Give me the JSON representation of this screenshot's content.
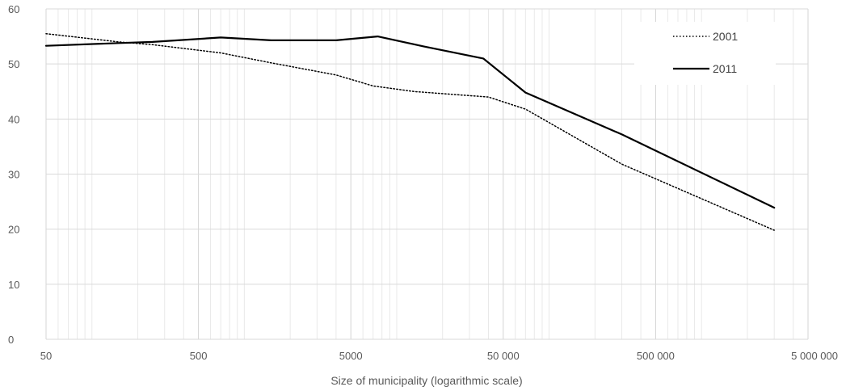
{
  "chart_data": {
    "type": "line",
    "title": "",
    "xlabel": "Size of municipality (logarithmic scale)",
    "ylabel": "",
    "x_scale": "log",
    "xlim": [
      50,
      5000000
    ],
    "ylim": [
      0,
      60
    ],
    "x_ticks": [
      50,
      500,
      5000,
      50000,
      500000,
      5000000
    ],
    "x_tick_labels": [
      "50",
      "500",
      "5000",
      "50 000",
      "500 000",
      "5 000 000"
    ],
    "y_ticks": [
      0,
      10,
      20,
      30,
      40,
      50,
      60
    ],
    "y_tick_labels": [
      "0",
      "10",
      "20",
      "30",
      "40",
      "50",
      "60"
    ],
    "grid": true,
    "legend_position": "top-right",
    "series": [
      {
        "name": "2001",
        "line_style": "dotted",
        "color": "#000000",
        "x": [
          50,
          150,
          250,
          700,
          1500,
          4000,
          7000,
          13000,
          40000,
          70000,
          300000,
          3000000
        ],
        "y": [
          55.5,
          54.0,
          53.5,
          52.0,
          50.2,
          48.0,
          46.0,
          45.0,
          44.0,
          41.8,
          31.8,
          19.8
        ]
      },
      {
        "name": "2011",
        "line_style": "solid",
        "color": "#000000",
        "x": [
          50,
          150,
          250,
          700,
          1500,
          4000,
          7500,
          15000,
          37000,
          70000,
          300000,
          3000000
        ],
        "y": [
          53.3,
          53.8,
          54.0,
          54.8,
          54.3,
          54.3,
          55.0,
          53.2,
          51.0,
          44.8,
          37.2,
          23.9
        ]
      }
    ]
  }
}
